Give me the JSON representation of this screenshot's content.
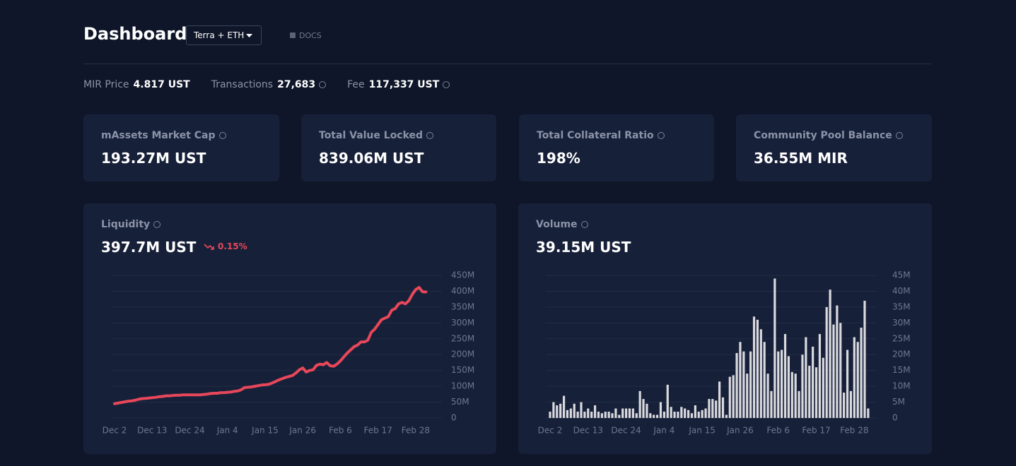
{
  "header": {
    "title": "Dashboard",
    "network": "Terra + ETH",
    "docs": "DOCS"
  },
  "stats": [
    {
      "label": "MIR Price",
      "value": "4.817 UST"
    },
    {
      "label": "Transactions",
      "value": "27,683"
    },
    {
      "label": "Fee",
      "value": "117,337 UST"
    }
  ],
  "cards": [
    {
      "label": "mAssets Market Cap",
      "value": "193.27M UST"
    },
    {
      "label": "Total Value Locked",
      "value": "839.06M UST"
    },
    {
      "label": "Total Collateral Ratio",
      "value": "198%"
    },
    {
      "label": "Community Pool Balance",
      "value": "36.55M MIR"
    }
  ],
  "chart_data": [
    {
      "type": "line",
      "title": "Liquidity",
      "headline": "397.7M UST",
      "change": "0.15%",
      "color": "#e8475a",
      "categories": [
        "Dec 2",
        null,
        null,
        null,
        null,
        null,
        null,
        null,
        null,
        null,
        null,
        "Dec 13",
        null,
        null,
        null,
        null,
        null,
        null,
        null,
        null,
        null,
        null,
        "Dec 24",
        null,
        null,
        null,
        null,
        null,
        null,
        null,
        null,
        null,
        null,
        "Jan 4",
        null,
        null,
        null,
        null,
        null,
        null,
        null,
        null,
        null,
        null,
        "Jan 15",
        null,
        null,
        null,
        null,
        null,
        null,
        null,
        null,
        null,
        null,
        "Jan 26",
        null,
        null,
        null,
        null,
        null,
        null,
        null,
        null,
        null,
        null,
        "Feb 6",
        null,
        null,
        null,
        null,
        null,
        null,
        null,
        null,
        null,
        null,
        "Feb 17",
        null,
        null,
        null,
        null,
        null,
        null,
        null,
        null,
        null,
        null,
        "Feb 28",
        null,
        null,
        null
      ],
      "values": [
        45,
        47,
        49,
        51,
        53,
        54,
        56,
        59,
        61,
        62,
        63,
        64,
        65,
        67,
        68,
        70,
        70,
        71,
        72,
        72,
        73,
        73,
        73,
        73,
        73,
        73,
        74,
        75,
        77,
        78,
        78,
        80,
        80,
        81,
        82,
        84,
        85,
        89,
        96,
        97,
        98,
        100,
        102,
        104,
        105,
        106,
        110,
        115,
        120,
        124,
        128,
        131,
        134,
        142,
        152,
        158,
        145,
        150,
        152,
        166,
        170,
        168,
        175,
        165,
        163,
        170,
        180,
        193,
        205,
        215,
        225,
        230,
        240,
        240,
        245,
        270,
        280,
        295,
        310,
        315,
        320,
        340,
        345,
        360,
        365,
        360,
        370,
        390,
        405,
        412,
        398,
        397.7
      ],
      "ylim": [
        0,
        450
      ],
      "yticks": [
        0,
        {
          "value": 50,
          "label": "50M"
        },
        {
          "value": 100,
          "label": "100M"
        },
        {
          "value": 150,
          "label": "150M"
        },
        {
          "value": 200,
          "label": "200M"
        },
        {
          "value": 250,
          "label": "250M"
        },
        {
          "value": 300,
          "label": "300M"
        },
        {
          "value": 350,
          "label": "350M"
        },
        {
          "value": 400,
          "label": "400M"
        },
        {
          "value": 450,
          "label": "450M"
        }
      ],
      "grid": true
    },
    {
      "type": "bar",
      "title": "Volume",
      "headline": "39.15M UST",
      "color": "#d9d9de",
      "categories": [
        "Dec 2",
        null,
        null,
        null,
        null,
        null,
        null,
        null,
        null,
        null,
        null,
        "Dec 13",
        null,
        null,
        null,
        null,
        null,
        null,
        null,
        null,
        null,
        null,
        "Dec 24",
        null,
        null,
        null,
        null,
        null,
        null,
        null,
        null,
        null,
        null,
        "Jan 4",
        null,
        null,
        null,
        null,
        null,
        null,
        null,
        null,
        null,
        null,
        "Jan 15",
        null,
        null,
        null,
        null,
        null,
        null,
        null,
        null,
        null,
        null,
        "Jan 26",
        null,
        null,
        null,
        null,
        null,
        null,
        null,
        null,
        null,
        null,
        "Feb 6",
        null,
        null,
        null,
        null,
        null,
        null,
        null,
        null,
        null,
        null,
        "Feb 17",
        null,
        null,
        null,
        null,
        null,
        null,
        null,
        null,
        null,
        null,
        "Feb 28",
        null,
        null,
        null,
        null
      ],
      "values": [
        2,
        5,
        4,
        4.5,
        7,
        2.5,
        3,
        4.5,
        2,
        5,
        2,
        3,
        2,
        4,
        2,
        1.5,
        2,
        2,
        1.5,
        3,
        1,
        3,
        3,
        3,
        3,
        1.5,
        8.5,
        6,
        4.5,
        1.5,
        1,
        1,
        5,
        2,
        10.5,
        3.5,
        2,
        2,
        3.5,
        3,
        2.5,
        1.5,
        4,
        2,
        2.5,
        3,
        6,
        6,
        5.5,
        11.5,
        6.5,
        1,
        13,
        13.5,
        20.5,
        24,
        21,
        14,
        21,
        32,
        31,
        28,
        24,
        14,
        8.5,
        44,
        21,
        21.5,
        26.5,
        19.5,
        14.5,
        14,
        8.5,
        20,
        25.5,
        16.5,
        22.5,
        16,
        26.5,
        19,
        35,
        40.5,
        29.5,
        35.5,
        30,
        8,
        21.5,
        8.5,
        25.5,
        24,
        28.5,
        37,
        3
      ],
      "ylim": [
        0,
        45
      ],
      "yticks": [
        0,
        {
          "value": 5,
          "label": "5M"
        },
        {
          "value": 10,
          "label": "10M"
        },
        {
          "value": 15,
          "label": "15M"
        },
        {
          "value": 20,
          "label": "20M"
        },
        {
          "value": 25,
          "label": "25M"
        },
        {
          "value": 30,
          "label": "30M"
        },
        {
          "value": 35,
          "label": "35M"
        },
        {
          "value": 40,
          "label": "40M"
        },
        {
          "value": 45,
          "label": "45M"
        }
      ],
      "grid": true
    }
  ]
}
